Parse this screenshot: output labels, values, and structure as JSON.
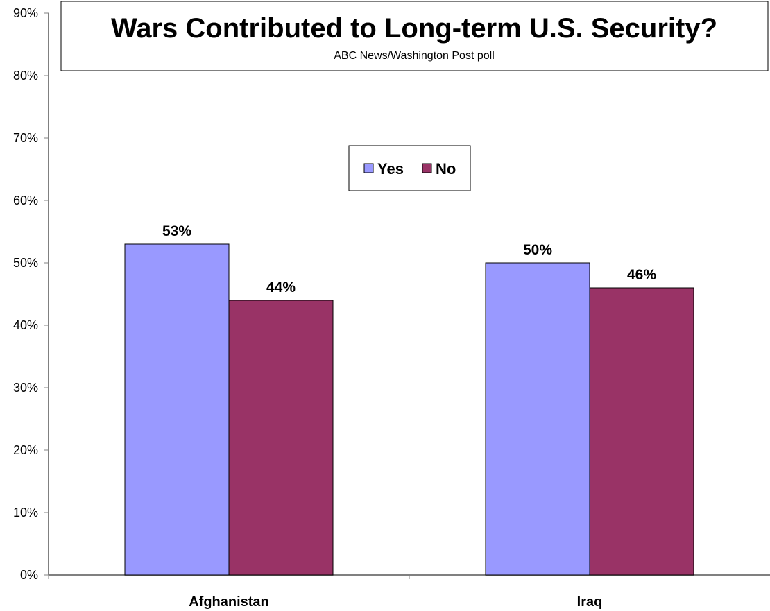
{
  "chart_data": {
    "type": "bar",
    "title": "Wars Contributed to Long-term U.S. Security?",
    "subtitle": "ABC News/Washington Post poll",
    "categories": [
      "Afghanistan",
      "Iraq"
    ],
    "series": [
      {
        "name": "Yes",
        "values": [
          53,
          50
        ],
        "labels": [
          "53%",
          "50%"
        ],
        "color": "#9999ff"
      },
      {
        "name": "No",
        "values": [
          44,
          46
        ],
        "labels": [
          "44%",
          "46%"
        ],
        "color": "#993366"
      }
    ],
    "ylim": [
      0,
      90
    ],
    "yticks": [
      0,
      10,
      20,
      30,
      40,
      50,
      60,
      70,
      80,
      90
    ],
    "ytick_labels": [
      "0%",
      "10%",
      "20%",
      "30%",
      "40%",
      "50%",
      "60%",
      "70%",
      "80%",
      "90%"
    ],
    "xlabel": "",
    "ylabel": "",
    "grid": false,
    "legend_position": "center-top"
  }
}
